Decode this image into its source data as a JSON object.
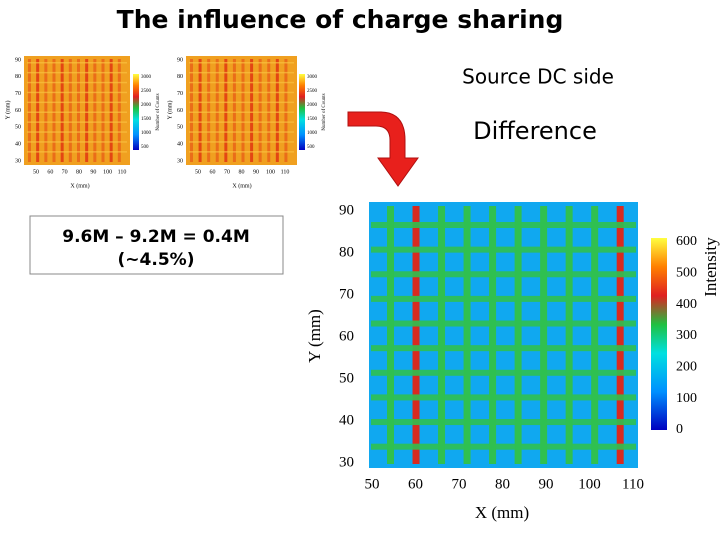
{
  "header": {
    "title": "The influence of charge sharing"
  },
  "labels": {
    "source": "Source DC side",
    "difference": "Difference"
  },
  "result_box": {
    "lines": [
      "9.6M – 9.2M = 0.4M",
      "(~4.5%)"
    ]
  },
  "maps": [
    {
      "x_label": "X (mm)",
      "y_label": "Y (mm)",
      "colorbar_label": "Number of Counts",
      "x_ticks": [
        "50",
        "60",
        "70",
        "80",
        "90",
        "100",
        "110"
      ],
      "y_ticks": [
        "90",
        "80",
        "70",
        "60",
        "50",
        "40",
        "30"
      ],
      "colorbar_ticks": [
        "3000",
        "2500",
        "2000",
        "1500",
        "1000",
        "500"
      ]
    },
    {
      "x_label": "X (mm)",
      "y_label": "Y (mm)",
      "colorbar_label": "Number of Counts",
      "x_ticks": [
        "50",
        "60",
        "70",
        "80",
        "90",
        "100",
        "110"
      ],
      "y_ticks": [
        "90",
        "80",
        "70",
        "60",
        "50",
        "40",
        "30"
      ],
      "colorbar_ticks": [
        "3000",
        "2500",
        "2000",
        "1500",
        "1000",
        "500"
      ]
    },
    {
      "x_label": "X (mm)",
      "y_label": "Y (mm)",
      "colorbar_label": "Intensity",
      "x_ticks": [
        "50",
        "60",
        "70",
        "80",
        "90",
        "100",
        "110"
      ],
      "y_ticks": [
        "90",
        "80",
        "70",
        "60",
        "50",
        "40",
        "30"
      ],
      "colorbar_ticks": [
        "600",
        "500",
        "400",
        "300",
        "200",
        "100",
        "0"
      ]
    }
  ]
}
